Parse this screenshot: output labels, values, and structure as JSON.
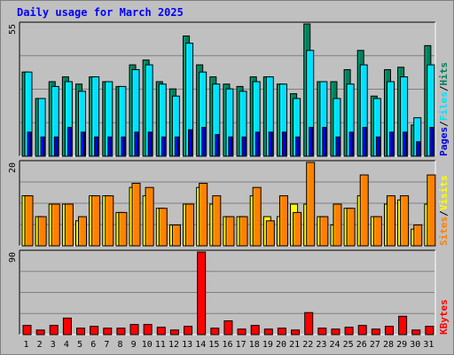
{
  "chart_data": [
    {
      "type": "bar",
      "title": "Daily usage for March 2025",
      "categories": [
        "1",
        "2",
        "3",
        "4",
        "5",
        "6",
        "7",
        "8",
        "9",
        "10",
        "11",
        "12",
        "13",
        "14",
        "15",
        "16",
        "17",
        "18",
        "19",
        "20",
        "21",
        "22",
        "23",
        "24",
        "25",
        "26",
        "27",
        "28",
        "29",
        "30",
        "31"
      ],
      "weekend_days": [
        "1",
        "2",
        "8",
        "9",
        "15",
        "16",
        "22",
        "23",
        "29",
        "30"
      ],
      "ymax": 55,
      "ylabel_parts": [
        "Pages",
        "Files",
        "Hits"
      ],
      "series": [
        {
          "name": "Hits",
          "values": [
            35,
            24,
            31,
            33,
            30,
            33,
            31,
            29,
            38,
            40,
            31,
            28,
            50,
            38,
            33,
            30,
            29,
            33,
            33,
            30,
            26,
            56,
            31,
            31,
            36,
            44,
            25,
            36,
            37,
            13,
            46
          ]
        },
        {
          "name": "Files",
          "values": [
            35,
            24,
            29,
            31,
            27,
            33,
            31,
            29,
            36,
            38,
            30,
            25,
            47,
            35,
            30,
            28,
            27,
            31,
            33,
            30,
            24,
            44,
            31,
            24,
            30,
            38,
            24,
            31,
            33,
            16,
            38
          ]
        },
        {
          "name": "Pages",
          "values": [
            10,
            8,
            8,
            12,
            10,
            8,
            8,
            8,
            10,
            10,
            8,
            8,
            11,
            12,
            9,
            8,
            8,
            10,
            10,
            10,
            8,
            12,
            12,
            8,
            10,
            12,
            8,
            10,
            10,
            6,
            12
          ]
        }
      ],
      "colors": {
        "hits": "#00805c",
        "files": "#00e0ff",
        "pages": "#0000e0"
      }
    },
    {
      "type": "bar",
      "categories": [
        "1",
        "2",
        "3",
        "4",
        "5",
        "6",
        "7",
        "8",
        "9",
        "10",
        "11",
        "12",
        "13",
        "14",
        "15",
        "16",
        "17",
        "18",
        "19",
        "20",
        "21",
        "22",
        "23",
        "24",
        "25",
        "26",
        "27",
        "28",
        "29",
        "30",
        "31"
      ],
      "ymax": 20,
      "ylabel_parts": [
        "Sites",
        "Visits"
      ],
      "series": [
        {
          "name": "Visits",
          "values": [
            12,
            7,
            10,
            10,
            6,
            12,
            12,
            8,
            14,
            12,
            9,
            5,
            10,
            14,
            10,
            7,
            7,
            12,
            7,
            7,
            10,
            10,
            7,
            5,
            9,
            12,
            7,
            10,
            11,
            4,
            10
          ]
        },
        {
          "name": "Sites",
          "values": [
            12,
            7,
            10,
            10,
            7,
            12,
            12,
            8,
            15,
            14,
            9,
            5,
            10,
            15,
            12,
            7,
            7,
            14,
            6,
            12,
            8,
            20,
            7,
            10,
            9,
            17,
            7,
            12,
            12,
            5,
            17
          ]
        }
      ],
      "colors": {
        "visits": "#ffff00",
        "sites": "#ff8000"
      }
    },
    {
      "type": "bar",
      "categories": [
        "1",
        "2",
        "3",
        "4",
        "5",
        "6",
        "7",
        "8",
        "9",
        "10",
        "11",
        "12",
        "13",
        "14",
        "15",
        "16",
        "17",
        "18",
        "19",
        "20",
        "21",
        "22",
        "23",
        "24",
        "25",
        "26",
        "27",
        "28",
        "29",
        "30",
        "31"
      ],
      "ymax": 90,
      "ylabel_parts": [
        "KBytes"
      ],
      "series": [
        {
          "name": "KBytes",
          "values": [
            10,
            5,
            10,
            18,
            7,
            9,
            7,
            7,
            11,
            11,
            8,
            5,
            9,
            90,
            7,
            15,
            6,
            10,
            6,
            7,
            5,
            24,
            7,
            6,
            8,
            10,
            6,
            9,
            20,
            5,
            9
          ]
        }
      ],
      "colors": {
        "kbytes": "#ff0000"
      }
    }
  ]
}
